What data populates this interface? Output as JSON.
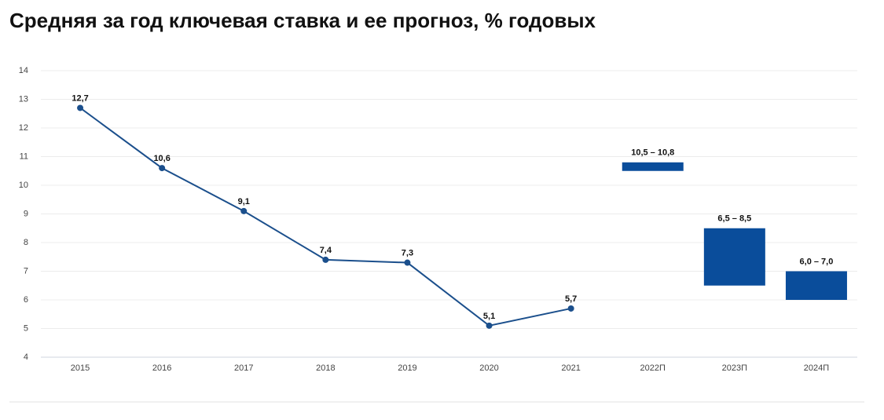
{
  "chart_data": {
    "type": "line",
    "title": "Средняя за год ключевая ставка и ее прогноз, % годовых",
    "categories": [
      "2015",
      "2016",
      "2017",
      "2018",
      "2019",
      "2020",
      "2021",
      "2022П",
      "2023П",
      "2024П"
    ],
    "series": [
      {
        "type": "line",
        "color": "#1b4f8c",
        "values": [
          12.7,
          10.6,
          9.1,
          7.4,
          7.3,
          5.1,
          5.7,
          null,
          null,
          null
        ],
        "value_labels": [
          "12,7",
          "10,6",
          "9,1",
          "7,4",
          "7,3",
          "5,1",
          "5,7",
          null,
          null,
          null
        ]
      },
      {
        "type": "range",
        "color": "#0a4d9b",
        "low": [
          null,
          null,
          null,
          null,
          null,
          null,
          null,
          10.5,
          6.5,
          6.0
        ],
        "high": [
          null,
          null,
          null,
          null,
          null,
          null,
          null,
          10.8,
          8.5,
          7.0
        ],
        "value_labels": [
          null,
          null,
          null,
          null,
          null,
          null,
          null,
          "10,5 – 10,8",
          "6,5 – 8,5",
          "6,0 – 7,0"
        ]
      }
    ],
    "ylim": [
      4,
      14
    ],
    "yticks": [
      4,
      5,
      6,
      7,
      8,
      9,
      10,
      11,
      12,
      13,
      14
    ],
    "grid": true
  }
}
